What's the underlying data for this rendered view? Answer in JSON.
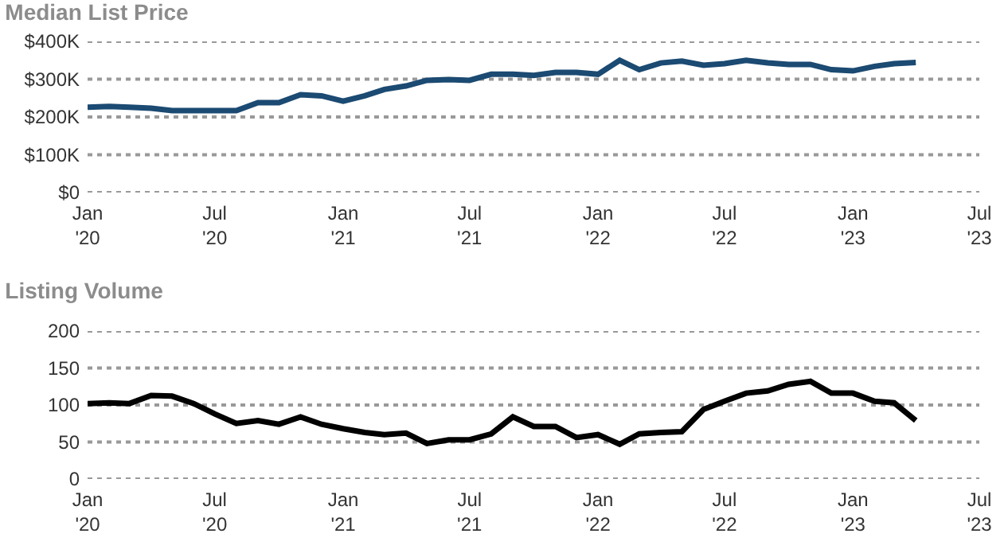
{
  "chart_data": [
    {
      "type": "line",
      "title": "Median List Price",
      "x": [
        "2020-01",
        "2020-02",
        "2020-03",
        "2020-04",
        "2020-05",
        "2020-06",
        "2020-07",
        "2020-08",
        "2020-09",
        "2020-10",
        "2020-11",
        "2020-12",
        "2021-01",
        "2021-02",
        "2021-03",
        "2021-04",
        "2021-05",
        "2021-06",
        "2021-07",
        "2021-08",
        "2021-09",
        "2021-10",
        "2021-11",
        "2021-12",
        "2022-01",
        "2022-02",
        "2022-03",
        "2022-04",
        "2022-05",
        "2022-06",
        "2022-07",
        "2022-08",
        "2022-09",
        "2022-10",
        "2022-11",
        "2022-12",
        "2023-01",
        "2023-02",
        "2023-03",
        "2023-04"
      ],
      "series": [
        {
          "color": "#1b4a72",
          "values": [
            226000,
            228000,
            226000,
            223000,
            217000,
            217000,
            217000,
            217000,
            238000,
            238000,
            259000,
            256000,
            242000,
            256000,
            273000,
            282000,
            297000,
            299000,
            297000,
            313000,
            313000,
            310000,
            318000,
            318000,
            313000,
            350000,
            325000,
            343000,
            348000,
            337000,
            341000,
            350000,
            343000,
            339000,
            339000,
            325000,
            322000,
            334000,
            341000,
            344000
          ]
        }
      ],
      "xlim": [
        "2020-01",
        "2023-07"
      ],
      "xticks": [
        {
          "value": "2020-01",
          "label": "Jan\n'20"
        },
        {
          "value": "2020-07",
          "label": "Jul\n'20"
        },
        {
          "value": "2021-01",
          "label": "Jan\n'21"
        },
        {
          "value": "2021-07",
          "label": "Jul\n'21"
        },
        {
          "value": "2022-01",
          "label": "Jan\n'22"
        },
        {
          "value": "2022-07",
          "label": "Jul\n'22"
        },
        {
          "value": "2023-01",
          "label": "Jan\n'23"
        },
        {
          "value": "2023-07",
          "label": "Jul\n'23"
        }
      ],
      "ylim": [
        0,
        400000
      ],
      "yticks": [
        {
          "value": 0,
          "label": "$0"
        },
        {
          "value": 100000,
          "label": "$100K"
        },
        {
          "value": 200000,
          "label": "$200K"
        },
        {
          "value": 300000,
          "label": "$300K"
        },
        {
          "value": 400000,
          "label": "$400K"
        }
      ],
      "grid": "y",
      "marker": "none",
      "line_style": "solid"
    },
    {
      "type": "line",
      "title": "Listing Volume",
      "x": [
        "2020-01",
        "2020-02",
        "2020-03",
        "2020-04",
        "2020-05",
        "2020-06",
        "2020-07",
        "2020-08",
        "2020-09",
        "2020-10",
        "2020-11",
        "2020-12",
        "2021-01",
        "2021-02",
        "2021-03",
        "2021-04",
        "2021-05",
        "2021-06",
        "2021-07",
        "2021-08",
        "2021-09",
        "2021-10",
        "2021-11",
        "2021-12",
        "2022-01",
        "2022-02",
        "2022-03",
        "2022-04",
        "2022-05",
        "2022-06",
        "2022-07",
        "2022-08",
        "2022-09",
        "2022-10",
        "2022-11",
        "2022-12",
        "2023-01",
        "2023-02",
        "2023-03",
        "2023-04"
      ],
      "series": [
        {
          "color": "#000000",
          "values": [
            102,
            103,
            102,
            113,
            112,
            102,
            88,
            75,
            79,
            74,
            84,
            74,
            68,
            63,
            60,
            62,
            48,
            53,
            53,
            61,
            84,
            71,
            71,
            56,
            60,
            47,
            61,
            63,
            64,
            94,
            105,
            116,
            119,
            128,
            132,
            116,
            116,
            105,
            103,
            79
          ]
        }
      ],
      "xlim": [
        "2020-01",
        "2023-07"
      ],
      "xticks": [
        {
          "value": "2020-01",
          "label": "Jan\n'20"
        },
        {
          "value": "2020-07",
          "label": "Jul\n'20"
        },
        {
          "value": "2021-01",
          "label": "Jan\n'21"
        },
        {
          "value": "2021-07",
          "label": "Jul\n'21"
        },
        {
          "value": "2022-01",
          "label": "Jan\n'22"
        },
        {
          "value": "2022-07",
          "label": "Jul\n'22"
        },
        {
          "value": "2023-01",
          "label": "Jan\n'23"
        },
        {
          "value": "2023-07",
          "label": "Jul\n'23"
        }
      ],
      "ylim": [
        0,
        200
      ],
      "yticks": [
        0,
        50,
        100,
        150,
        200
      ],
      "grid": "y",
      "marker": "none",
      "line_style": "solid"
    }
  ]
}
